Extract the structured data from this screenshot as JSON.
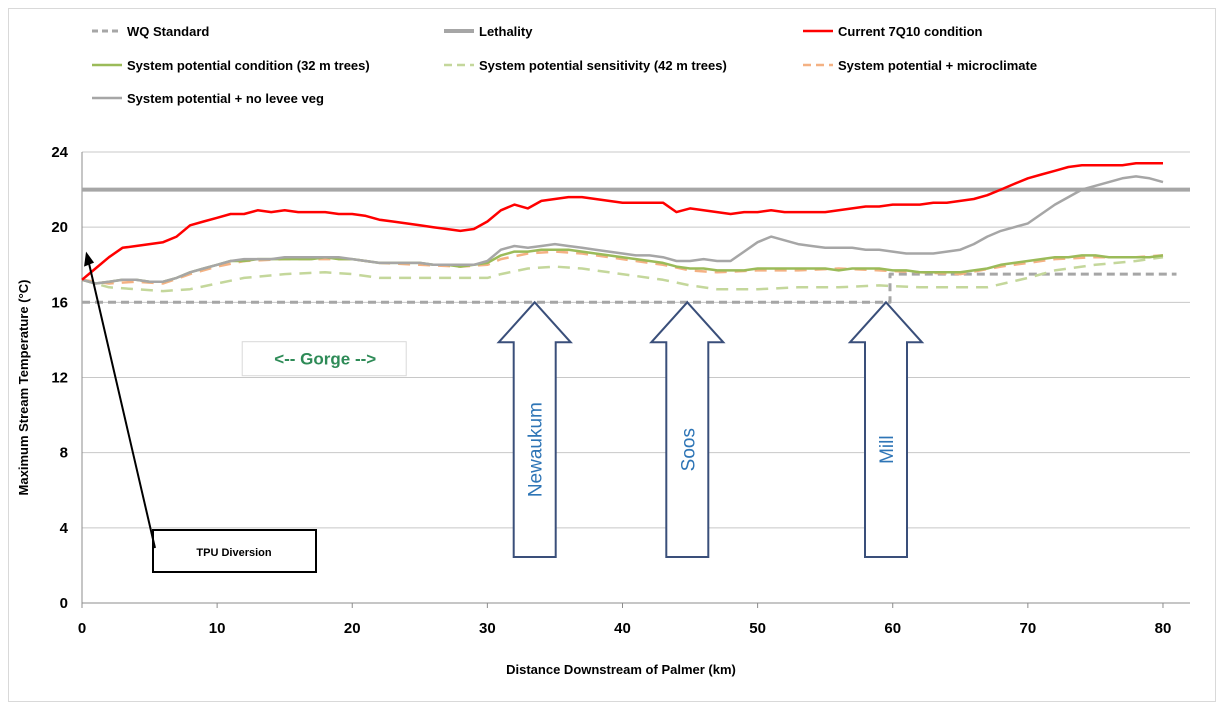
{
  "chart_data": {
    "type": "line",
    "title": "",
    "xlabel": "Distance  Downstream of Palmer (km)",
    "ylabel": "Maximum Stream Temperature (°C)",
    "xlim": [
      0,
      82
    ],
    "ylim": [
      0,
      24
    ],
    "xticks": [
      "0",
      "10",
      "20",
      "30",
      "40",
      "50",
      "60",
      "70",
      "80"
    ],
    "yticks": [
      "0",
      "4",
      "8",
      "12",
      "16",
      "20",
      "24"
    ],
    "grid": "horizontal",
    "legend_position": "top",
    "series": [
      {
        "name": "WQ Standard",
        "color": "#a6a6a6",
        "dash": "8,5",
        "width": 3,
        "x": [
          0,
          59.8,
          59.8,
          81
        ],
        "y": [
          16,
          16,
          17.5,
          17.5
        ]
      },
      {
        "name": "Lethality",
        "color": "#a6a6a6",
        "dash": "",
        "width": 4,
        "x": [
          0,
          82
        ],
        "y": [
          22,
          22
        ]
      },
      {
        "name": "Current 7Q10 condition",
        "color": "#ff0000",
        "dash": "",
        "width": 2.5,
        "x": [
          0,
          1,
          2,
          3,
          4,
          5,
          6,
          7,
          8,
          9,
          10,
          11,
          12,
          13,
          14,
          15,
          16,
          17,
          18,
          19,
          20,
          21,
          22,
          23,
          24,
          25,
          26,
          27,
          28,
          29,
          30,
          31,
          32,
          33,
          34,
          35,
          36,
          37,
          38,
          39,
          40,
          41,
          42,
          43,
          44,
          45,
          46,
          47,
          48,
          49,
          50,
          51,
          52,
          53,
          54,
          55,
          56,
          57,
          58,
          59,
          60,
          61,
          62,
          63,
          64,
          65,
          66,
          67,
          68,
          69,
          70,
          71,
          72,
          73,
          74,
          75,
          76,
          77,
          78,
          79,
          80
        ],
        "y": [
          17.2,
          17.8,
          18.4,
          18.9,
          19.0,
          19.1,
          19.2,
          19.5,
          20.1,
          20.3,
          20.5,
          20.7,
          20.7,
          20.9,
          20.8,
          20.9,
          20.8,
          20.8,
          20.8,
          20.7,
          20.7,
          20.6,
          20.4,
          20.3,
          20.2,
          20.1,
          20.0,
          19.9,
          19.8,
          19.9,
          20.3,
          20.9,
          21.2,
          21.0,
          21.4,
          21.5,
          21.6,
          21.6,
          21.5,
          21.4,
          21.3,
          21.3,
          21.3,
          21.3,
          20.8,
          21.0,
          20.9,
          20.8,
          20.7,
          20.8,
          20.8,
          20.9,
          20.8,
          20.8,
          20.8,
          20.8,
          20.9,
          21.0,
          21.1,
          21.1,
          21.2,
          21.2,
          21.2,
          21.3,
          21.3,
          21.4,
          21.5,
          21.7,
          22.0,
          22.3,
          22.6,
          22.8,
          23.0,
          23.2,
          23.3,
          23.3,
          23.3,
          23.3,
          23.4,
          23.4,
          23.4
        ]
      },
      {
        "name": "System potential condition (32 m trees)",
        "color": "#9bbb59",
        "dash": "",
        "width": 2.5,
        "x": [
          0,
          1,
          2,
          3,
          4,
          5,
          6,
          7,
          8,
          9,
          10,
          11,
          12,
          13,
          14,
          15,
          16,
          17,
          18,
          19,
          20,
          21,
          22,
          23,
          24,
          25,
          26,
          27,
          28,
          29,
          30,
          31,
          32,
          33,
          34,
          35,
          36,
          37,
          38,
          39,
          40,
          41,
          42,
          43,
          44,
          45,
          46,
          47,
          48,
          49,
          50,
          51,
          52,
          53,
          54,
          55,
          56,
          57,
          58,
          59,
          60,
          61,
          62,
          63,
          64,
          65,
          66,
          67,
          68,
          69,
          70,
          71,
          72,
          73,
          74,
          75,
          76,
          77,
          78,
          79,
          80
        ],
        "y": [
          17.2,
          17.0,
          17.1,
          17.2,
          17.2,
          17.1,
          17.1,
          17.3,
          17.6,
          17.8,
          18.0,
          18.2,
          18.2,
          18.3,
          18.3,
          18.3,
          18.3,
          18.3,
          18.4,
          18.3,
          18.3,
          18.2,
          18.1,
          18.1,
          18.1,
          18.1,
          18.0,
          18.0,
          17.9,
          18.0,
          18.1,
          18.5,
          18.7,
          18.7,
          18.8,
          18.8,
          18.8,
          18.7,
          18.6,
          18.5,
          18.4,
          18.3,
          18.2,
          18.1,
          17.9,
          17.8,
          17.8,
          17.7,
          17.7,
          17.7,
          17.8,
          17.8,
          17.8,
          17.8,
          17.8,
          17.8,
          17.7,
          17.8,
          17.8,
          17.8,
          17.7,
          17.7,
          17.6,
          17.6,
          17.6,
          17.6,
          17.7,
          17.8,
          18.0,
          18.1,
          18.2,
          18.3,
          18.4,
          18.4,
          18.5,
          18.5,
          18.4,
          18.4,
          18.4,
          18.4,
          18.5
        ]
      },
      {
        "name": "System potential sensitivity (42 m trees)",
        "color": "#c4d79b",
        "dash": "12,8",
        "width": 2.5,
        "x": [
          0,
          2,
          4,
          6,
          8,
          10,
          12,
          15,
          18,
          20,
          22,
          25,
          28,
          30,
          31,
          33,
          35,
          37,
          39,
          41,
          43,
          45,
          47,
          50,
          53,
          56,
          59,
          62,
          65,
          67,
          70,
          72,
          75,
          78,
          80
        ],
        "y": [
          17.2,
          16.8,
          16.7,
          16.6,
          16.7,
          17.0,
          17.3,
          17.5,
          17.6,
          17.5,
          17.3,
          17.3,
          17.3,
          17.3,
          17.5,
          17.8,
          17.9,
          17.8,
          17.6,
          17.4,
          17.2,
          16.9,
          16.7,
          16.7,
          16.8,
          16.8,
          16.9,
          16.8,
          16.8,
          16.8,
          17.3,
          17.7,
          18.0,
          18.2,
          18.4
        ]
      },
      {
        "name": "System potential + microclimate",
        "color": "#f4b183",
        "dash": "12,8",
        "width": 2.5,
        "x": [
          0,
          2,
          4,
          6,
          8,
          10,
          12,
          15,
          18,
          20,
          22,
          25,
          28,
          30,
          31,
          33,
          35,
          37,
          39,
          41,
          43,
          45,
          47,
          50,
          53,
          56,
          59,
          62,
          65,
          68,
          70,
          72,
          75,
          78,
          80
        ],
        "y": [
          17.2,
          17.0,
          17.1,
          17.0,
          17.5,
          17.9,
          18.2,
          18.3,
          18.3,
          18.3,
          18.1,
          18.0,
          17.9,
          18.0,
          18.3,
          18.6,
          18.7,
          18.6,
          18.4,
          18.2,
          18.0,
          17.7,
          17.6,
          17.7,
          17.7,
          17.8,
          17.7,
          17.6,
          17.5,
          17.9,
          18.1,
          18.3,
          18.4,
          18.4,
          18.5
        ]
      },
      {
        "name": "System potential + no levee veg",
        "color": "#a6a6a6",
        "dash": "",
        "width": 2.5,
        "x": [
          0,
          1,
          2,
          3,
          4,
          5,
          6,
          7,
          8,
          9,
          10,
          11,
          12,
          13,
          14,
          15,
          16,
          17,
          18,
          19,
          20,
          21,
          22,
          23,
          24,
          25,
          26,
          27,
          28,
          29,
          30,
          31,
          32,
          33,
          34,
          35,
          36,
          37,
          38,
          39,
          40,
          41,
          42,
          43,
          44,
          45,
          46,
          47,
          48,
          49,
          50,
          51,
          52,
          53,
          54,
          55,
          56,
          57,
          58,
          59,
          60,
          61,
          62,
          63,
          64,
          65,
          66,
          67,
          68,
          69,
          70,
          71,
          72,
          73,
          74,
          75,
          76,
          77,
          78,
          79,
          80
        ],
        "y": [
          17.2,
          17.0,
          17.1,
          17.2,
          17.2,
          17.1,
          17.1,
          17.3,
          17.6,
          17.8,
          18.0,
          18.2,
          18.3,
          18.3,
          18.3,
          18.4,
          18.4,
          18.4,
          18.4,
          18.4,
          18.3,
          18.2,
          18.1,
          18.1,
          18.1,
          18.1,
          18.0,
          18.0,
          18.0,
          18.0,
          18.2,
          18.8,
          19.0,
          18.9,
          19.0,
          19.1,
          19.0,
          18.9,
          18.8,
          18.7,
          18.6,
          18.5,
          18.5,
          18.4,
          18.2,
          18.2,
          18.3,
          18.2,
          18.2,
          18.7,
          19.2,
          19.5,
          19.3,
          19.1,
          19.0,
          18.9,
          18.9,
          18.9,
          18.8,
          18.8,
          18.7,
          18.6,
          18.6,
          18.6,
          18.7,
          18.8,
          19.1,
          19.5,
          19.8,
          20.0,
          20.2,
          20.7,
          21.2,
          21.6,
          22.0,
          22.2,
          22.4,
          22.6,
          22.7,
          22.6,
          22.4
        ]
      }
    ],
    "annotations": [
      {
        "text": "TPU Diversion",
        "kind": "box-arrow",
        "x": 0.3,
        "y": 18.7
      },
      {
        "text": "<-- Gorge -->",
        "kind": "box-text",
        "x": 18,
        "y": 13.0
      },
      {
        "text": "Newaukum",
        "kind": "up-arrow",
        "x": 33.5,
        "y": 16.0
      },
      {
        "text": "Soos",
        "kind": "up-arrow",
        "x": 44.8,
        "y": 16.0
      },
      {
        "text": "Mill",
        "kind": "up-arrow",
        "x": 59.5,
        "y": 16.0
      }
    ]
  }
}
